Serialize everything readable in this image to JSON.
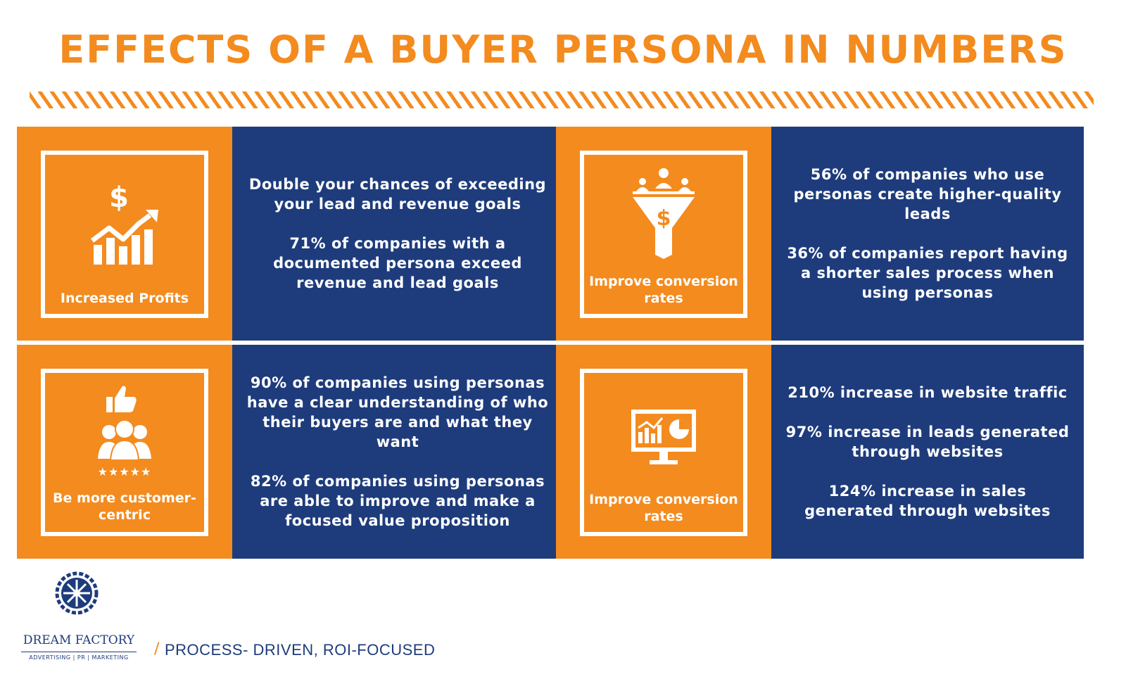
{
  "title": "EFFECTS OF A BUYER PERSONA IN NUMBERS",
  "colors": {
    "orange": "#f38b1f",
    "navy": "#1e3c7c",
    "white": "#ffffff"
  },
  "cards": [
    {
      "icon": "profit-chart-icon",
      "label": "Increased Profits",
      "paragraphs": [
        "Double your chances of exceeding your lead and revenue goals",
        "71% of companies with a documented persona exceed revenue and lead goals"
      ]
    },
    {
      "icon": "funnel-icon",
      "label": "Improve conversion rates",
      "paragraphs": [
        "56% of companies who use personas create higher-quality leads",
        "36% of companies report having a shorter sales process when using personas"
      ]
    },
    {
      "icon": "customer-rating-icon",
      "label": "Be more customer-centric",
      "paragraphs": [
        "90% of companies using personas have a clear understanding of who their buyers are and what they want",
        "82% of companies using personas are able to improve and make a focused value proposition"
      ]
    },
    {
      "icon": "monitor-chart-icon",
      "label": "Improve conversion rates",
      "paragraphs": [
        "210% increase in website traffic",
        "97% increase in leads generated through websites",
        "124% increase in sales generated through websites"
      ]
    }
  ],
  "footer": {
    "brand": "DREAM FACTORY",
    "services": "ADVERTISING | PR | MARKETING",
    "tagline": "PROCESS- DRIVEN, ROI-FOCUSED"
  }
}
